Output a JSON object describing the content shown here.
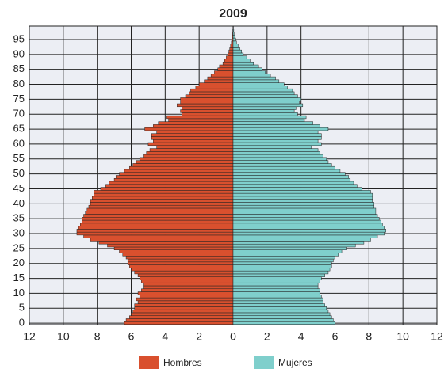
{
  "chart_data": {
    "type": "pyramid",
    "title": "2009",
    "y": [
      0,
      1,
      2,
      3,
      4,
      5,
      6,
      7,
      8,
      9,
      10,
      11,
      12,
      13,
      14,
      15,
      16,
      17,
      18,
      19,
      20,
      21,
      22,
      23,
      24,
      25,
      26,
      27,
      28,
      29,
      30,
      31,
      32,
      33,
      34,
      35,
      36,
      37,
      38,
      39,
      40,
      41,
      42,
      43,
      44,
      45,
      46,
      47,
      48,
      49,
      50,
      51,
      52,
      53,
      54,
      55,
      56,
      57,
      58,
      59,
      60,
      61,
      62,
      63,
      64,
      65,
      66,
      67,
      68,
      69,
      70,
      71,
      72,
      73,
      74,
      75,
      76,
      77,
      78,
      79,
      80,
      81,
      82,
      83,
      84,
      85,
      86,
      87,
      88,
      89,
      90,
      91,
      92,
      93,
      94,
      95,
      96,
      97,
      98,
      99
    ],
    "series": [
      {
        "name": "Hombres",
        "color": "#d9502e",
        "side": "left",
        "values": [
          6.4,
          6.3,
          6.1,
          6.0,
          5.9,
          5.8,
          5.8,
          5.6,
          5.7,
          5.5,
          5.6,
          5.4,
          5.3,
          5.3,
          5.4,
          5.5,
          5.6,
          5.8,
          6.0,
          6.1,
          6.2,
          6.2,
          6.3,
          6.5,
          6.7,
          7.0,
          7.4,
          7.9,
          8.4,
          8.8,
          9.2,
          9.2,
          9.1,
          9.0,
          8.9,
          8.9,
          8.8,
          8.7,
          8.6,
          8.5,
          8.4,
          8.4,
          8.3,
          8.2,
          8.2,
          7.8,
          7.5,
          7.3,
          7.0,
          6.9,
          6.7,
          6.4,
          6.1,
          5.9,
          5.7,
          5.5,
          5.3,
          5.1,
          4.9,
          4.5,
          5.0,
          4.7,
          4.8,
          4.8,
          4.5,
          5.2,
          4.7,
          4.4,
          3.8,
          3.9,
          3.0,
          3.1,
          3.0,
          3.3,
          3.1,
          3.1,
          2.8,
          2.6,
          2.5,
          2.2,
          2.0,
          1.7,
          1.5,
          1.3,
          1.1,
          0.9,
          0.8,
          0.6,
          0.5,
          0.4,
          0.3,
          0.25,
          0.2,
          0.15,
          0.1,
          0.08,
          0.05,
          0.03,
          0.02,
          0.01
        ]
      },
      {
        "name": "Mujeres",
        "color": "#7fcfcc",
        "side": "right",
        "values": [
          6.0,
          5.9,
          5.8,
          5.7,
          5.6,
          5.5,
          5.4,
          5.3,
          5.3,
          5.2,
          5.1,
          5.1,
          5.0,
          5.0,
          5.1,
          5.2,
          5.4,
          5.6,
          5.7,
          5.8,
          5.8,
          5.9,
          6.0,
          6.2,
          6.4,
          6.7,
          7.2,
          7.7,
          8.1,
          8.5,
          8.9,
          9.0,
          8.9,
          8.8,
          8.7,
          8.6,
          8.5,
          8.4,
          8.4,
          8.3,
          8.3,
          8.2,
          8.2,
          8.2,
          8.1,
          7.6,
          7.3,
          7.1,
          6.9,
          6.8,
          6.6,
          6.3,
          6.0,
          5.8,
          5.6,
          5.5,
          5.3,
          5.1,
          5.0,
          4.6,
          5.2,
          5.0,
          5.2,
          5.2,
          5.0,
          5.6,
          5.1,
          4.7,
          4.2,
          4.3,
          3.8,
          3.6,
          3.7,
          4.1,
          3.9,
          4.0,
          3.8,
          3.6,
          3.5,
          3.2,
          3.0,
          2.7,
          2.5,
          2.2,
          1.9,
          1.7,
          1.5,
          1.2,
          1.0,
          0.8,
          0.6,
          0.5,
          0.4,
          0.3,
          0.2,
          0.15,
          0.1,
          0.06,
          0.04,
          0.02
        ]
      }
    ],
    "xlim": [
      -12,
      12
    ],
    "xticks": [
      {
        "value": -12,
        "label": "12"
      },
      {
        "value": -10,
        "label": "10"
      },
      {
        "value": -8,
        "label": "8"
      },
      {
        "value": -6,
        "label": "6"
      },
      {
        "value": -4,
        "label": "4"
      },
      {
        "value": -2,
        "label": "2"
      },
      0,
      2,
      4,
      6,
      8,
      10,
      12
    ],
    "ylim": [
      -0.5,
      99.5
    ],
    "yticks": [
      0,
      5,
      10,
      15,
      20,
      25,
      30,
      35,
      40,
      45,
      50,
      55,
      60,
      65,
      70,
      75,
      80,
      85,
      90,
      95
    ],
    "grid": true
  }
}
